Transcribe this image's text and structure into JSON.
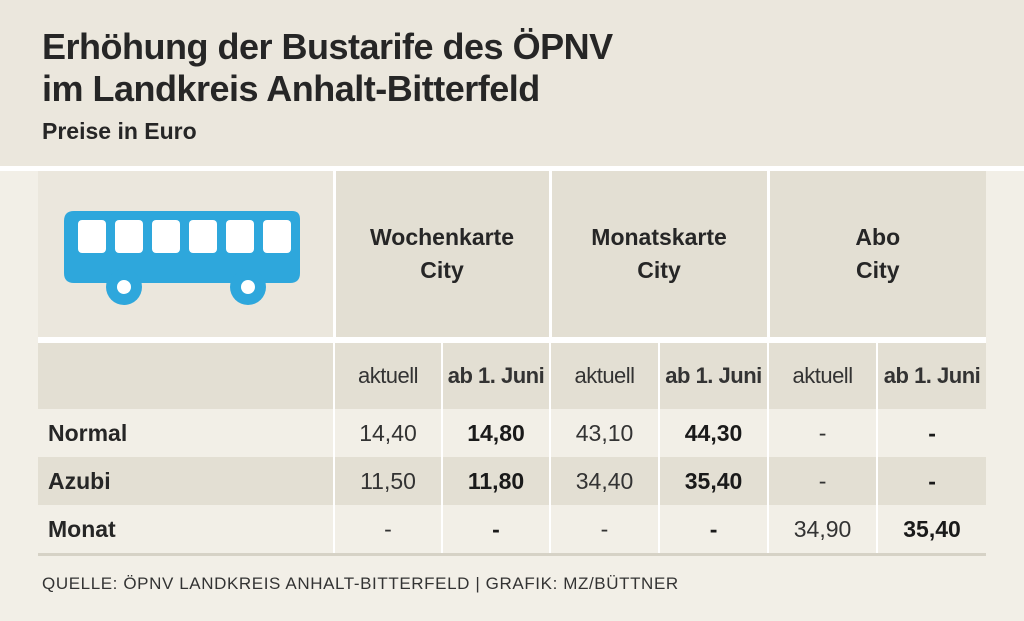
{
  "title_line1": "Erhöhung der Bustarife des ÖPNV",
  "title_line2": "im Landkreis Anhalt-Bitterfeld",
  "subtitle": "Preise in Euro",
  "icon": "bus-icon",
  "colors": {
    "accent": "#2ea7dc",
    "header_background": "#ebe7dd",
    "cell_dark": "#e3dfd3",
    "cell_light": "#f2efe7"
  },
  "chart_data": {
    "type": "table",
    "groups": [
      {
        "line1": "Wochenkarte",
        "line2": "City"
      },
      {
        "line1": "Monatskarte",
        "line2": "City"
      },
      {
        "line1": "Abo",
        "line2": "City"
      }
    ],
    "subheaders": [
      "aktuell",
      "ab 1. Juni"
    ],
    "rows": [
      {
        "label": "Normal",
        "values": [
          "14,40",
          "14,80",
          "43,10",
          "44,30",
          "-",
          "-"
        ]
      },
      {
        "label": "Azubi",
        "values": [
          "11,50",
          "11,80",
          "34,40",
          "35,40",
          "-",
          "-"
        ]
      },
      {
        "label": "Monat",
        "values": [
          "-",
          "-",
          "-",
          "-",
          "34,90",
          "35,40"
        ]
      }
    ]
  },
  "source": "QUELLE: ÖPNV LANDKREIS ANHALT-BITTERFELD | GRAFIK: MZ/BÜTTNER"
}
